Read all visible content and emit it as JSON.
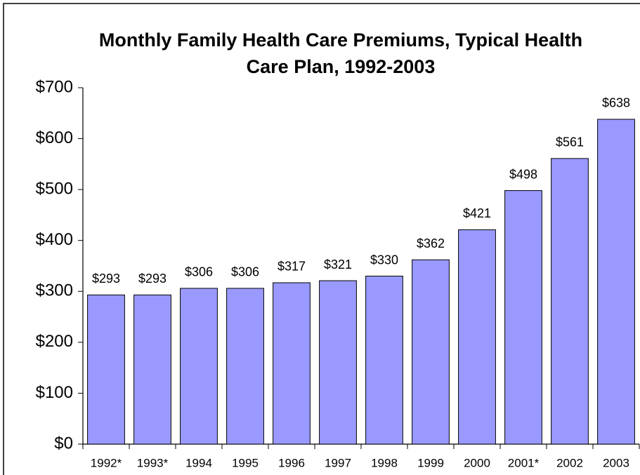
{
  "chart_data": {
    "type": "bar",
    "title": "Monthly Family Health Care Premiums, Typical Health Care Plan, 1992-2003",
    "categories": [
      "1992*",
      "1993*",
      "1994",
      "1995",
      "1996",
      "1997",
      "1998",
      "1999",
      "2000",
      "2001*",
      "2002",
      "2003"
    ],
    "values": [
      293,
      293,
      306,
      306,
      317,
      321,
      330,
      362,
      421,
      498,
      561,
      638
    ],
    "value_labels": [
      "$293",
      "$293",
      "$306",
      "$306",
      "$317",
      "$321",
      "$330",
      "$362",
      "$421",
      "$498",
      "$561",
      "$638"
    ],
    "color": "#9999ff",
    "ylim": [
      0,
      700
    ],
    "yticks": [
      {
        "value": 0,
        "label": "$0"
      },
      {
        "value": 100,
        "label": "$100"
      },
      {
        "value": 200,
        "label": "$200"
      },
      {
        "value": 300,
        "label": "$300"
      },
      {
        "value": 400,
        "label": "$400"
      },
      {
        "value": 500,
        "label": "$500"
      },
      {
        "value": 600,
        "label": "$600"
      },
      {
        "value": 700,
        "label": "$700"
      }
    ],
    "grid": false
  }
}
